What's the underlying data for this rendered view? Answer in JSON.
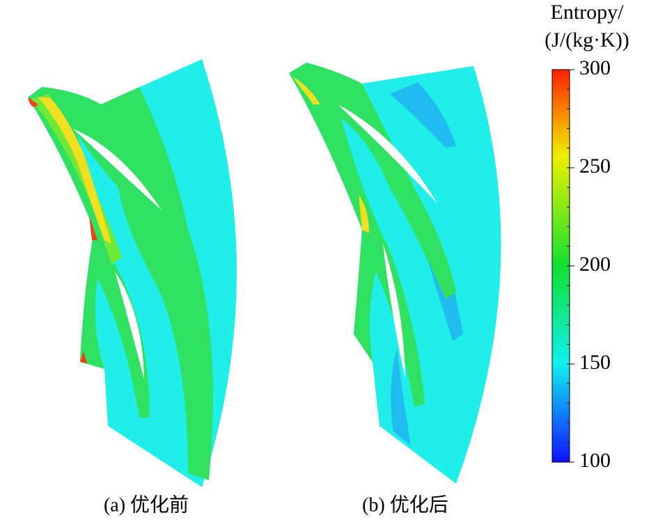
{
  "chart_data": {
    "type": "contour",
    "panels": [
      {
        "caption": "(a) 优化前"
      },
      {
        "caption": "(b) 优化后"
      }
    ],
    "colorbar": {
      "title": [
        "Entropy/",
        "(J/(kg·K))"
      ],
      "lim": [
        100,
        300
      ],
      "ticks": [
        100,
        150,
        200,
        250,
        300
      ]
    }
  }
}
